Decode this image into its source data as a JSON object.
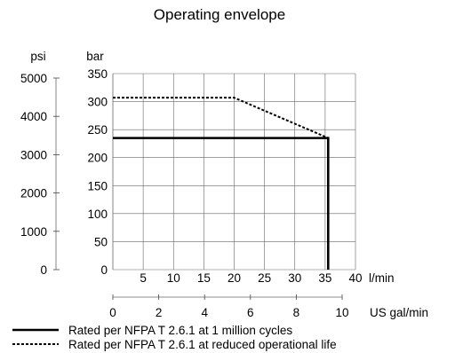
{
  "chart_data": {
    "type": "line",
    "title": "Operating envelope",
    "y_left_unit": "psi",
    "y_left_ticks": [
      {
        "value": 5000,
        "label": "5000"
      },
      {
        "value": 4000,
        "label": "4000"
      },
      {
        "value": 3000,
        "label": "3000"
      },
      {
        "value": 2000,
        "label": "2000"
      },
      {
        "value": 1000,
        "label": "1000"
      },
      {
        "value": 0,
        "label": "0"
      }
    ],
    "y_right_unit": "bar",
    "ylim": [
      0,
      350
    ],
    "y_ticks": [
      {
        "value": 350,
        "label": "350"
      },
      {
        "value": 300,
        "label": "300"
      },
      {
        "value": 250,
        "label": "250"
      },
      {
        "value": 200,
        "label": "200"
      },
      {
        "value": 150,
        "label": "150"
      },
      {
        "value": 100,
        "label": "100"
      },
      {
        "value": 50,
        "label": "50"
      },
      {
        "value": 0,
        "label": "0"
      }
    ],
    "x_unit": "l/min",
    "xlim": [
      0,
      40
    ],
    "x_ticks": [
      {
        "value": 5,
        "label": "5"
      },
      {
        "value": 10,
        "label": "10"
      },
      {
        "value": 15,
        "label": "15"
      },
      {
        "value": 20,
        "label": "20"
      },
      {
        "value": 25,
        "label": "25"
      },
      {
        "value": 30,
        "label": "30"
      },
      {
        "value": 35,
        "label": "35"
      },
      {
        "value": 40,
        "label": "40"
      }
    ],
    "x2_unit": "US gal/min",
    "x2lim": [
      0,
      10
    ],
    "x2_ticks": [
      {
        "value": 0,
        "label": "0"
      },
      {
        "value": 2,
        "label": "2"
      },
      {
        "value": 4,
        "label": "4"
      },
      {
        "value": 6,
        "label": "6"
      },
      {
        "value": 8,
        "label": "8"
      },
      {
        "value": 10,
        "label": "10"
      }
    ],
    "grid": true,
    "legend_position": "bottom-left",
    "series": [
      {
        "name": "Rated per NFPA T 2.6.1 at 1 million cycles",
        "style": "solid",
        "x": [
          0,
          35.5,
          35.5
        ],
        "y": [
          235,
          235,
          0
        ]
      },
      {
        "name": "Rated per NFPA T 2.6.1 at reduced operational life",
        "style": "dashed",
        "x": [
          0,
          20,
          35.5
        ],
        "y": [
          307,
          307,
          235
        ]
      }
    ]
  }
}
